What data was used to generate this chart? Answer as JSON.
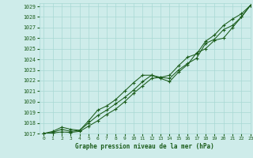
{
  "title": "Graphe pression niveau de la mer (hPa)",
  "bg_color": "#ceecea",
  "grid_color": "#a8d8d4",
  "line_color": "#1a5c1a",
  "xlim": [
    -0.5,
    23
  ],
  "ylim": [
    1017,
    1029.3
  ],
  "xticks": [
    0,
    1,
    2,
    3,
    4,
    5,
    6,
    7,
    8,
    9,
    10,
    11,
    12,
    13,
    14,
    15,
    16,
    17,
    18,
    19,
    20,
    21,
    22,
    23
  ],
  "yticks": [
    1017,
    1018,
    1019,
    1020,
    1021,
    1022,
    1023,
    1024,
    1025,
    1026,
    1027,
    1028,
    1029
  ],
  "series1_x": [
    0,
    1,
    2,
    3,
    4,
    5,
    6,
    7,
    8,
    9,
    10,
    11,
    12,
    13,
    14,
    15,
    16,
    17,
    18,
    19,
    20,
    21,
    22,
    23
  ],
  "series1_y": [
    1017.0,
    1017.1,
    1017.4,
    1017.2,
    1017.3,
    1018.0,
    1018.7,
    1019.2,
    1019.8,
    1020.4,
    1021.1,
    1021.9,
    1022.5,
    1022.3,
    1022.2,
    1023.0,
    1023.6,
    1024.1,
    1025.5,
    1025.9,
    1026.8,
    1027.2,
    1028.0,
    1029.1
  ],
  "series2_x": [
    0,
    1,
    2,
    3,
    4,
    5,
    6,
    7,
    8,
    9,
    10,
    11,
    12,
    13,
    14,
    15,
    16,
    17,
    18,
    19,
    20,
    21,
    22,
    23
  ],
  "series2_y": [
    1017.0,
    1017.2,
    1017.6,
    1017.4,
    1017.3,
    1018.2,
    1019.2,
    1019.6,
    1020.2,
    1021.0,
    1021.8,
    1022.5,
    1022.5,
    1022.2,
    1021.9,
    1022.8,
    1023.5,
    1024.6,
    1025.0,
    1025.8,
    1026.0,
    1027.0,
    1028.0,
    1029.1
  ],
  "series3_x": [
    0,
    1,
    2,
    3,
    4,
    5,
    6,
    7,
    8,
    9,
    10,
    11,
    12,
    13,
    14,
    15,
    16,
    17,
    18,
    19,
    20,
    21,
    22,
    23
  ],
  "series3_y": [
    1017.0,
    1017.05,
    1017.15,
    1017.1,
    1017.2,
    1017.7,
    1018.2,
    1018.8,
    1019.3,
    1020.0,
    1020.8,
    1021.5,
    1022.2,
    1022.3,
    1022.5,
    1023.4,
    1024.2,
    1024.5,
    1025.7,
    1026.3,
    1027.2,
    1027.8,
    1028.3,
    1029.1
  ]
}
